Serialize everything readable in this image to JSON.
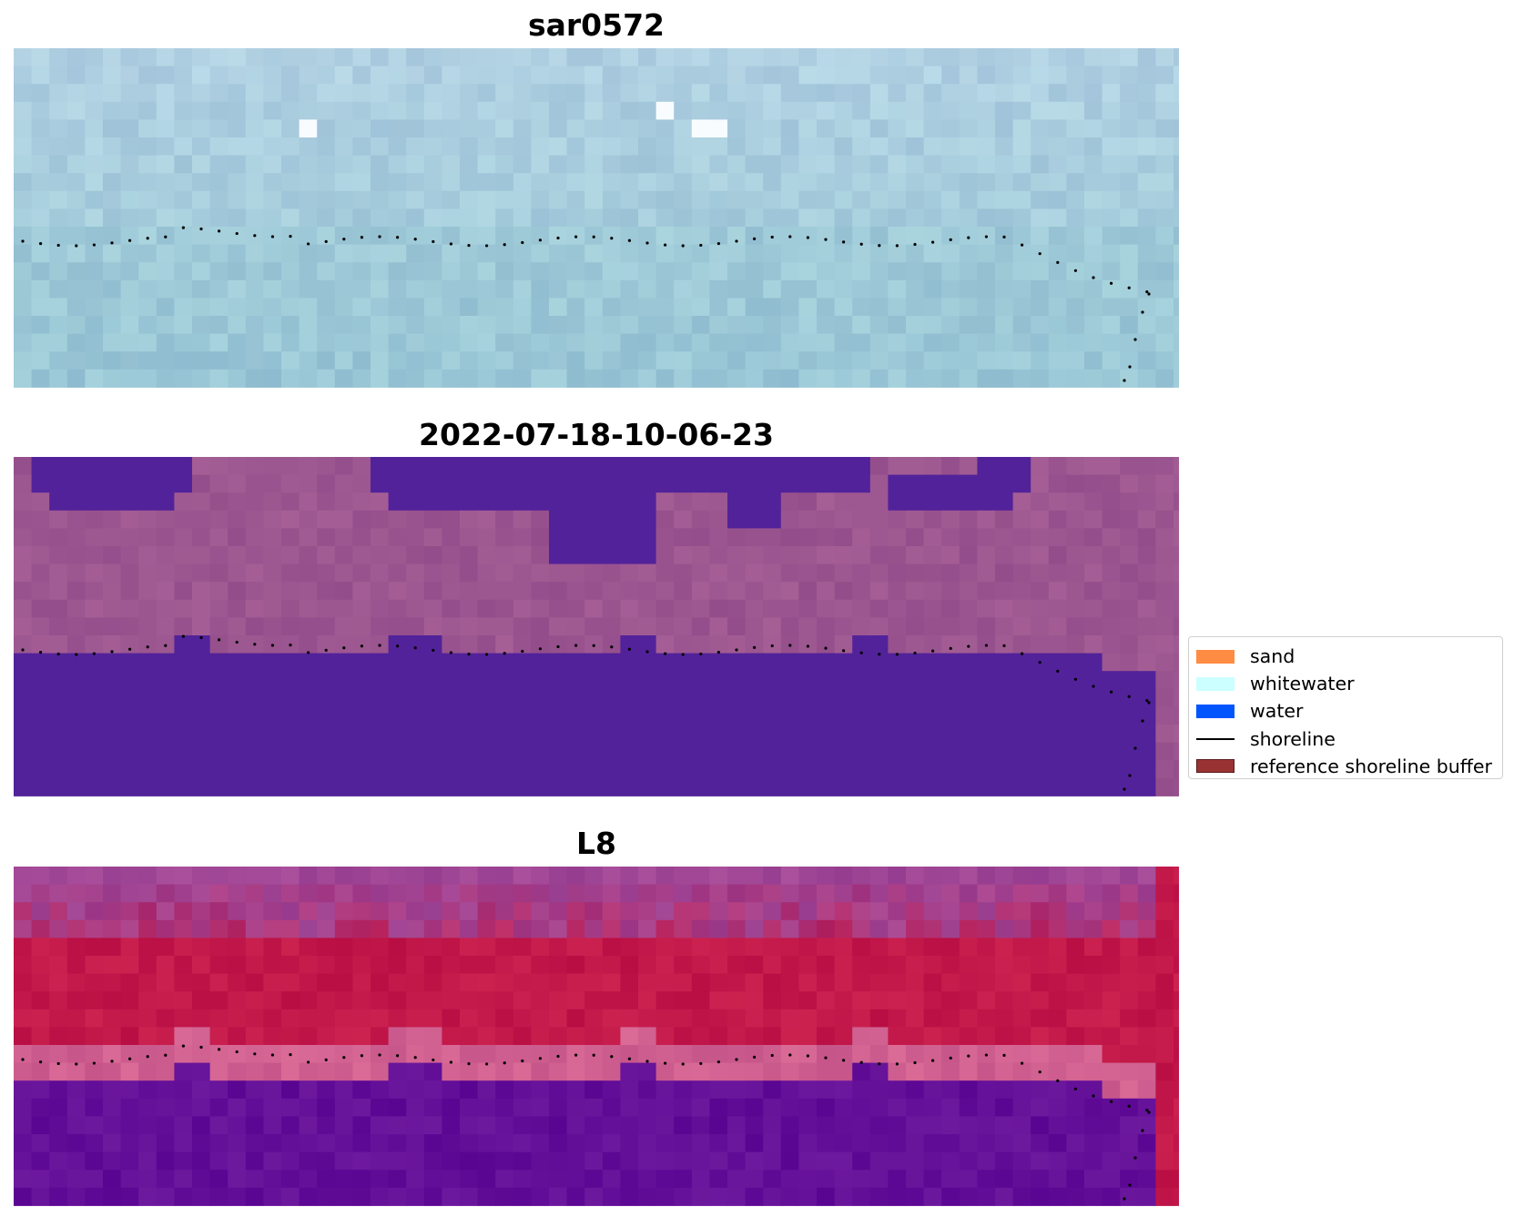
{
  "panels": [
    {
      "id": "sar",
      "title": "sar0572"
    },
    {
      "id": "classified",
      "title": "2022-07-18-10-06-23"
    },
    {
      "id": "l8",
      "title": "L8"
    }
  ],
  "legend": {
    "items": [
      {
        "label": "sand",
        "color": "#ff8c42",
        "kind": "patch"
      },
      {
        "label": "whitewater",
        "color": "#ccffff",
        "kind": "patch"
      },
      {
        "label": "water",
        "color": "#0055ff",
        "kind": "patch"
      },
      {
        "label": "shoreline",
        "color": "#000000",
        "kind": "line"
      },
      {
        "label": "reference shoreline buffer",
        "color": "#993333",
        "kind": "patch"
      }
    ]
  },
  "colors": {
    "sar_base": "#9fcad8",
    "classified_land": "#9c5690",
    "classified_water": "#52229a",
    "l8_land": "#c2184a",
    "l8_water": "#630f98",
    "l8_edge": "#d06090"
  }
}
